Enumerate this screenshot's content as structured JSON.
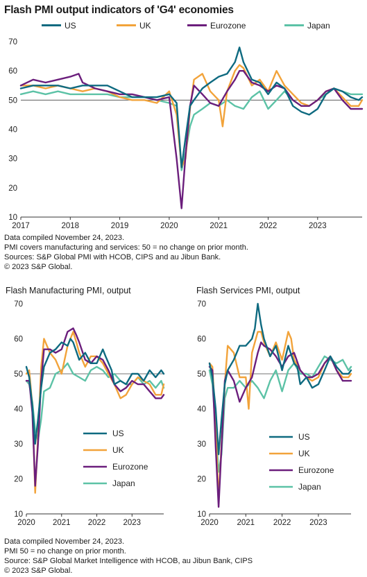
{
  "title": "Flash PMI output indicators of 'G4' economies",
  "colors": {
    "US": "#0e6a80",
    "UK": "#f2a33a",
    "Eurozone": "#6b1e7c",
    "Japan": "#5cc2a6",
    "axis": "#333333",
    "ref": "#444444"
  },
  "legend_top": [
    "US",
    "UK",
    "Eurozone",
    "Japan"
  ],
  "notes_top": [
    "Data compiled November 24, 2023.",
    "PMI covers manufacturing and services: 50 = no change on prior month.",
    "Sources: S&P Global PMI with HCOB, CIPS and au Jibun Bank.",
    "© 2023 S&P Global."
  ],
  "notes_bottom": [
    "Data compiled November 24, 2023.",
    "PMI 50 = no change on prior month.",
    "Source: S&P Global Market Intelligence with HCOB, au Jibun Bank, CIPS",
    "© 2023 S&P Global."
  ],
  "chart_data": [
    {
      "type": "line",
      "title": "Flash PMI output indicators of 'G4' economies",
      "ylim": [
        10,
        70
      ],
      "yticks": [
        10,
        20,
        30,
        40,
        50,
        60,
        70
      ],
      "xlim": [
        2017.0,
        2023.9
      ],
      "xticks": [
        "2017",
        "2018",
        "2019",
        "2020",
        "2021",
        "2022",
        "2023"
      ],
      "reference_line": 50,
      "legend_position": "top",
      "series": [
        {
          "name": "US",
          "x": [
            2017.0,
            2017.25,
            2017.5,
            2017.75,
            2018.0,
            2018.25,
            2018.5,
            2018.75,
            2019.0,
            2019.25,
            2019.5,
            2019.75,
            2020.0,
            2020.15,
            2020.25,
            2020.33,
            2020.42,
            2020.5,
            2020.67,
            2020.83,
            2021.0,
            2021.17,
            2021.33,
            2021.42,
            2021.5,
            2021.67,
            2021.83,
            2022.0,
            2022.17,
            2022.33,
            2022.5,
            2022.67,
            2022.83,
            2023.0,
            2023.17,
            2023.33,
            2023.5,
            2023.67,
            2023.83,
            2023.9
          ],
          "y": [
            54,
            55,
            55,
            55,
            54,
            55,
            55,
            55,
            53,
            51,
            51,
            51,
            52,
            49,
            27,
            37,
            48,
            50,
            54,
            56,
            58,
            59,
            63,
            68,
            63,
            57,
            56,
            52,
            56,
            54,
            48,
            46,
            45,
            47,
            52,
            54,
            53,
            51,
            50,
            51
          ]
        },
        {
          "name": "UK",
          "x": [
            2017.0,
            2017.25,
            2017.5,
            2017.75,
            2018.0,
            2018.25,
            2018.5,
            2018.75,
            2019.0,
            2019.25,
            2019.5,
            2019.75,
            2020.0,
            2020.15,
            2020.25,
            2020.33,
            2020.42,
            2020.5,
            2020.67,
            2020.83,
            2021.0,
            2021.08,
            2021.17,
            2021.33,
            2021.42,
            2021.5,
            2021.67,
            2021.83,
            2022.0,
            2022.17,
            2022.33,
            2022.5,
            2022.67,
            2022.83,
            2023.0,
            2023.17,
            2023.33,
            2023.5,
            2023.67,
            2023.83,
            2023.9
          ],
          "y": [
            55,
            55,
            54,
            55,
            54,
            53,
            54,
            53,
            51,
            50,
            50,
            49,
            53,
            45,
            27,
            30,
            47,
            57,
            59,
            53,
            50,
            41,
            53,
            60,
            62,
            61,
            55,
            57,
            53,
            60,
            55,
            52,
            49,
            48,
            50,
            53,
            54,
            51,
            48,
            48,
            50
          ]
        },
        {
          "name": "Eurozone",
          "x": [
            2017.0,
            2017.25,
            2017.5,
            2017.75,
            2018.0,
            2018.17,
            2018.25,
            2018.5,
            2018.75,
            2019.0,
            2019.25,
            2019.5,
            2019.75,
            2020.0,
            2020.15,
            2020.25,
            2020.33,
            2020.42,
            2020.5,
            2020.67,
            2020.83,
            2021.0,
            2021.17,
            2021.33,
            2021.42,
            2021.5,
            2021.67,
            2021.83,
            2022.0,
            2022.17,
            2022.33,
            2022.5,
            2022.67,
            2022.83,
            2023.0,
            2023.17,
            2023.33,
            2023.5,
            2023.67,
            2023.83,
            2023.9
          ],
          "y": [
            55,
            57,
            56,
            57,
            58,
            59,
            56,
            54,
            53,
            52,
            52,
            51,
            50,
            51,
            30,
            13,
            31,
            48,
            55,
            52,
            49,
            48,
            53,
            57,
            60,
            60,
            56,
            55,
            53,
            55,
            54,
            50,
            48,
            48,
            50,
            53,
            54,
            50,
            47,
            47,
            47
          ]
        },
        {
          "name": "Japan",
          "x": [
            2017.0,
            2017.25,
            2017.5,
            2017.75,
            2018.0,
            2018.25,
            2018.5,
            2018.75,
            2019.0,
            2019.25,
            2019.5,
            2019.75,
            2020.0,
            2020.15,
            2020.25,
            2020.33,
            2020.42,
            2020.5,
            2020.67,
            2020.83,
            2021.0,
            2021.17,
            2021.33,
            2021.5,
            2021.67,
            2021.83,
            2022.0,
            2022.17,
            2022.33,
            2022.5,
            2022.67,
            2022.83,
            2023.0,
            2023.17,
            2023.33,
            2023.5,
            2023.67,
            2023.83,
            2023.9
          ],
          "y": [
            52,
            53,
            52,
            53,
            52,
            52,
            52,
            52,
            51,
            51,
            51,
            50,
            49,
            48,
            26,
            32,
            41,
            45,
            47,
            49,
            48,
            50,
            48,
            47,
            51,
            53,
            47,
            50,
            53,
            50,
            48,
            48,
            50,
            52,
            54,
            53,
            52,
            52,
            52
          ]
        }
      ]
    },
    {
      "type": "line",
      "title": "Flash Manufacturing PMI, output",
      "ylim": [
        10,
        70
      ],
      "yticks": [
        10,
        20,
        30,
        40,
        50,
        60,
        70
      ],
      "xlim": [
        2020.0,
        2023.9
      ],
      "xticks": [
        "2020",
        "2021",
        "2022",
        "2023"
      ],
      "reference_line": 50,
      "legend_position": "bottom-right",
      "series": [
        {
          "name": "US",
          "x": [
            2020.0,
            2020.08,
            2020.17,
            2020.25,
            2020.33,
            2020.42,
            2020.5,
            2020.67,
            2020.83,
            2021.0,
            2021.17,
            2021.25,
            2021.33,
            2021.5,
            2021.67,
            2021.83,
            2022.0,
            2022.17,
            2022.25,
            2022.42,
            2022.5,
            2022.67,
            2022.83,
            2023.0,
            2023.17,
            2023.33,
            2023.5,
            2023.67,
            2023.83,
            2023.9
          ],
          "y": [
            52,
            49,
            41,
            30,
            37,
            46,
            52,
            56,
            57,
            59,
            58,
            60,
            59,
            54,
            56,
            53,
            53,
            57,
            55,
            51,
            47,
            48,
            47,
            50,
            50,
            48,
            51,
            49,
            51,
            50
          ]
        },
        {
          "name": "UK",
          "x": [
            2020.0,
            2020.08,
            2020.17,
            2020.25,
            2020.33,
            2020.42,
            2020.5,
            2020.67,
            2020.83,
            2021.0,
            2021.17,
            2021.33,
            2021.42,
            2021.5,
            2021.67,
            2021.83,
            2022.0,
            2022.17,
            2022.33,
            2022.5,
            2022.67,
            2022.83,
            2023.0,
            2023.17,
            2023.33,
            2023.5,
            2023.67,
            2023.83,
            2023.9
          ],
          "y": [
            50,
            51,
            41,
            16,
            32,
            52,
            60,
            56,
            54,
            50,
            58,
            62,
            59,
            56,
            52,
            55,
            55,
            53,
            50,
            47,
            43,
            44,
            47,
            49,
            48,
            47,
            44,
            44,
            47
          ]
        },
        {
          "name": "Eurozone",
          "x": [
            2020.0,
            2020.08,
            2020.17,
            2020.25,
            2020.33,
            2020.42,
            2020.5,
            2020.67,
            2020.83,
            2021.0,
            2021.17,
            2021.33,
            2021.42,
            2021.5,
            2021.67,
            2021.83,
            2022.0,
            2022.17,
            2022.33,
            2022.5,
            2022.67,
            2022.83,
            2023.0,
            2023.17,
            2023.33,
            2023.5,
            2023.67,
            2023.83,
            2023.9
          ],
          "y": [
            48,
            48,
            39,
            18,
            30,
            48,
            57,
            57,
            56,
            57,
            62,
            63,
            61,
            59,
            54,
            53,
            55,
            54,
            51,
            47,
            45,
            46,
            48,
            47,
            47,
            45,
            43,
            43,
            44
          ]
        },
        {
          "name": "Japan",
          "x": [
            2020.0,
            2020.08,
            2020.17,
            2020.25,
            2020.33,
            2020.42,
            2020.5,
            2020.67,
            2020.83,
            2021.0,
            2021.17,
            2021.33,
            2021.5,
            2021.67,
            2021.83,
            2022.0,
            2022.17,
            2022.33,
            2022.5,
            2022.67,
            2022.83,
            2023.0,
            2023.17,
            2023.33,
            2023.5,
            2023.67,
            2023.83,
            2023.9
          ],
          "y": [
            48,
            47,
            42,
            34,
            31,
            37,
            45,
            46,
            50,
            51,
            53,
            50,
            49,
            48,
            51,
            52,
            51,
            49,
            50,
            48,
            47,
            47,
            49,
            47,
            48,
            46,
            48,
            46
          ]
        }
      ]
    },
    {
      "type": "line",
      "title": "Flash Services PMI, output",
      "ylim": [
        10,
        70
      ],
      "yticks": [
        10,
        20,
        30,
        40,
        50,
        60,
        70
      ],
      "xlim": [
        2020.0,
        2023.9
      ],
      "xticks": [
        "2020",
        "2021",
        "2022",
        "2023"
      ],
      "reference_line": 50,
      "legend_position": "bottom-right",
      "series": [
        {
          "name": "US",
          "x": [
            2020.0,
            2020.08,
            2020.17,
            2020.25,
            2020.33,
            2020.42,
            2020.5,
            2020.67,
            2020.83,
            2021.0,
            2021.17,
            2021.25,
            2021.33,
            2021.42,
            2021.5,
            2021.67,
            2021.83,
            2022.0,
            2022.17,
            2022.33,
            2022.42,
            2022.5,
            2022.67,
            2022.83,
            2023.0,
            2023.17,
            2023.33,
            2023.5,
            2023.67,
            2023.83,
            2023.9
          ],
          "y": [
            53,
            49,
            40,
            27,
            37,
            47,
            51,
            54,
            58,
            58,
            60,
            63,
            70,
            64,
            60,
            55,
            58,
            51,
            58,
            53,
            52,
            47,
            49,
            46,
            47,
            51,
            55,
            52,
            50,
            50,
            51
          ]
        },
        {
          "name": "UK",
          "x": [
            2020.0,
            2020.08,
            2020.17,
            2020.25,
            2020.33,
            2020.42,
            2020.5,
            2020.67,
            2020.83,
            2021.0,
            2021.08,
            2021.17,
            2021.33,
            2021.42,
            2021.5,
            2021.67,
            2021.83,
            2022.0,
            2022.17,
            2022.25,
            2022.33,
            2022.5,
            2022.67,
            2022.83,
            2023.0,
            2023.17,
            2023.33,
            2023.5,
            2023.67,
            2023.83,
            2023.9
          ],
          "y": [
            53,
            52,
            35,
            14,
            30,
            47,
            58,
            56,
            49,
            49,
            40,
            56,
            62,
            62,
            59,
            55,
            59,
            54,
            62,
            60,
            54,
            51,
            49,
            48,
            49,
            53,
            55,
            51,
            49,
            49,
            50
          ]
        },
        {
          "name": "Eurozone",
          "x": [
            2020.0,
            2020.08,
            2020.17,
            2020.25,
            2020.33,
            2020.42,
            2020.5,
            2020.67,
            2020.83,
            2021.0,
            2021.17,
            2021.33,
            2021.42,
            2021.5,
            2021.67,
            2021.83,
            2022.0,
            2022.17,
            2022.33,
            2022.5,
            2022.67,
            2022.83,
            2023.0,
            2023.17,
            2023.33,
            2023.5,
            2023.67,
            2023.83,
            2023.9
          ],
          "y": [
            52,
            51,
            29,
            12,
            29,
            48,
            51,
            48,
            42,
            46,
            49,
            56,
            59,
            58,
            57,
            55,
            52,
            55,
            56,
            51,
            49,
            49,
            50,
            53,
            55,
            51,
            48,
            48,
            48
          ]
        },
        {
          "name": "Japan",
          "x": [
            2020.0,
            2020.08,
            2020.17,
            2020.25,
            2020.33,
            2020.42,
            2020.5,
            2020.67,
            2020.83,
            2021.0,
            2021.17,
            2021.33,
            2021.5,
            2021.67,
            2021.83,
            2022.0,
            2022.17,
            2022.33,
            2022.5,
            2022.67,
            2022.83,
            2023.0,
            2023.17,
            2023.33,
            2023.5,
            2023.67,
            2023.83,
            2023.9
          ],
          "y": [
            51,
            47,
            34,
            22,
            27,
            43,
            46,
            46,
            48,
            46,
            48,
            46,
            43,
            48,
            51,
            45,
            51,
            53,
            50,
            50,
            49,
            52,
            55,
            54,
            53,
            54,
            51,
            52
          ]
        }
      ]
    }
  ]
}
